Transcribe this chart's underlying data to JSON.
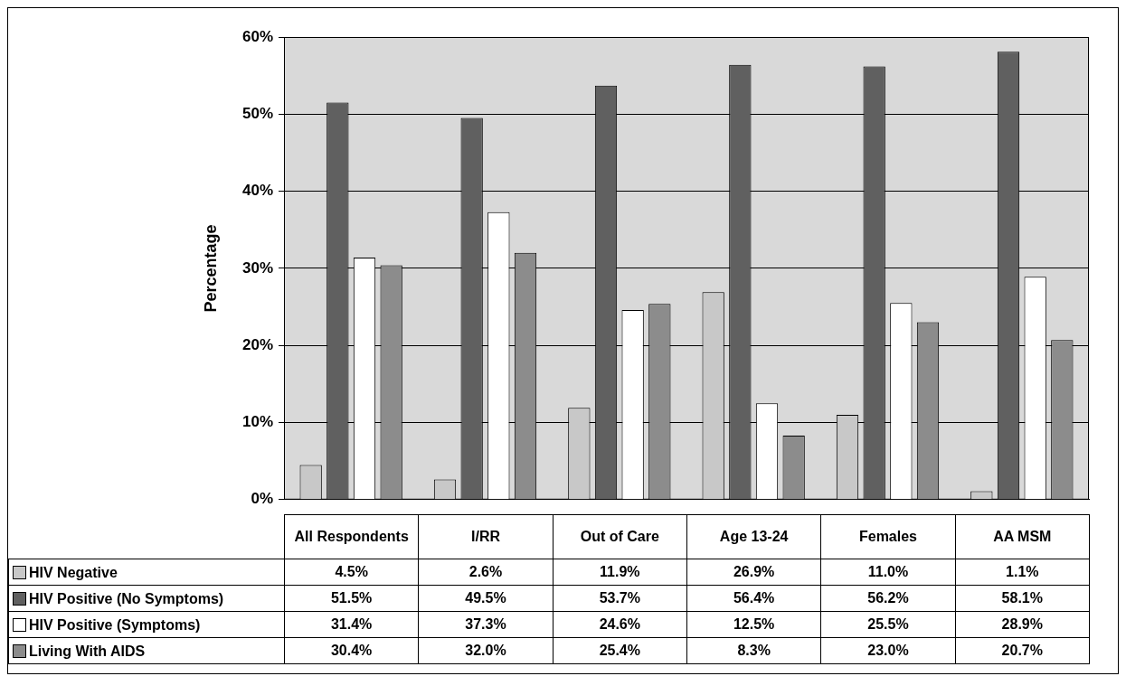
{
  "chart_data": {
    "type": "bar",
    "ylabel": "Percentage",
    "categories": [
      "All Respondents",
      "I/RR",
      "Out of Care",
      "Age 13-24",
      "Females",
      "AA MSM"
    ],
    "series": [
      {
        "name": "HIV Negative",
        "color": "#c8c8c8",
        "values": [
          4.5,
          2.6,
          11.9,
          26.9,
          11.0,
          1.1
        ],
        "value_labels": [
          "4.5%",
          "2.6%",
          "11.9%",
          "26.9%",
          "11.0%",
          "1.1%"
        ]
      },
      {
        "name": "HIV Positive (No Symptoms)",
        "color": "#606060",
        "values": [
          51.5,
          49.5,
          53.7,
          56.4,
          56.2,
          58.1
        ],
        "value_labels": [
          "51.5%",
          "49.5%",
          "53.7%",
          "56.4%",
          "56.2%",
          "58.1%"
        ]
      },
      {
        "name": "HIV Positive (Symptoms)",
        "color": "#ffffff",
        "values": [
          31.4,
          37.3,
          24.6,
          12.5,
          25.5,
          28.9
        ],
        "value_labels": [
          "31.4%",
          "37.3%",
          "24.6%",
          "12.5%",
          "25.5%",
          "28.9%"
        ]
      },
      {
        "name": "Living With AIDS",
        "color": "#8c8c8c",
        "values": [
          30.4,
          32.0,
          25.4,
          8.3,
          23.0,
          20.7
        ],
        "value_labels": [
          "30.4%",
          "32.0%",
          "25.4%",
          "8.3%",
          "23.0%",
          "20.7%"
        ]
      }
    ],
    "ylim": [
      0,
      60
    ],
    "yticks": [
      {
        "value": 0,
        "label": "0%"
      },
      {
        "value": 10,
        "label": "10%"
      },
      {
        "value": 20,
        "label": "20%"
      },
      {
        "value": 30,
        "label": "30%"
      },
      {
        "value": 40,
        "label": "40%"
      },
      {
        "value": 50,
        "label": "50%"
      },
      {
        "value": 60,
        "label": "60%"
      }
    ],
    "grid": "y",
    "legend": "bottom left"
  }
}
